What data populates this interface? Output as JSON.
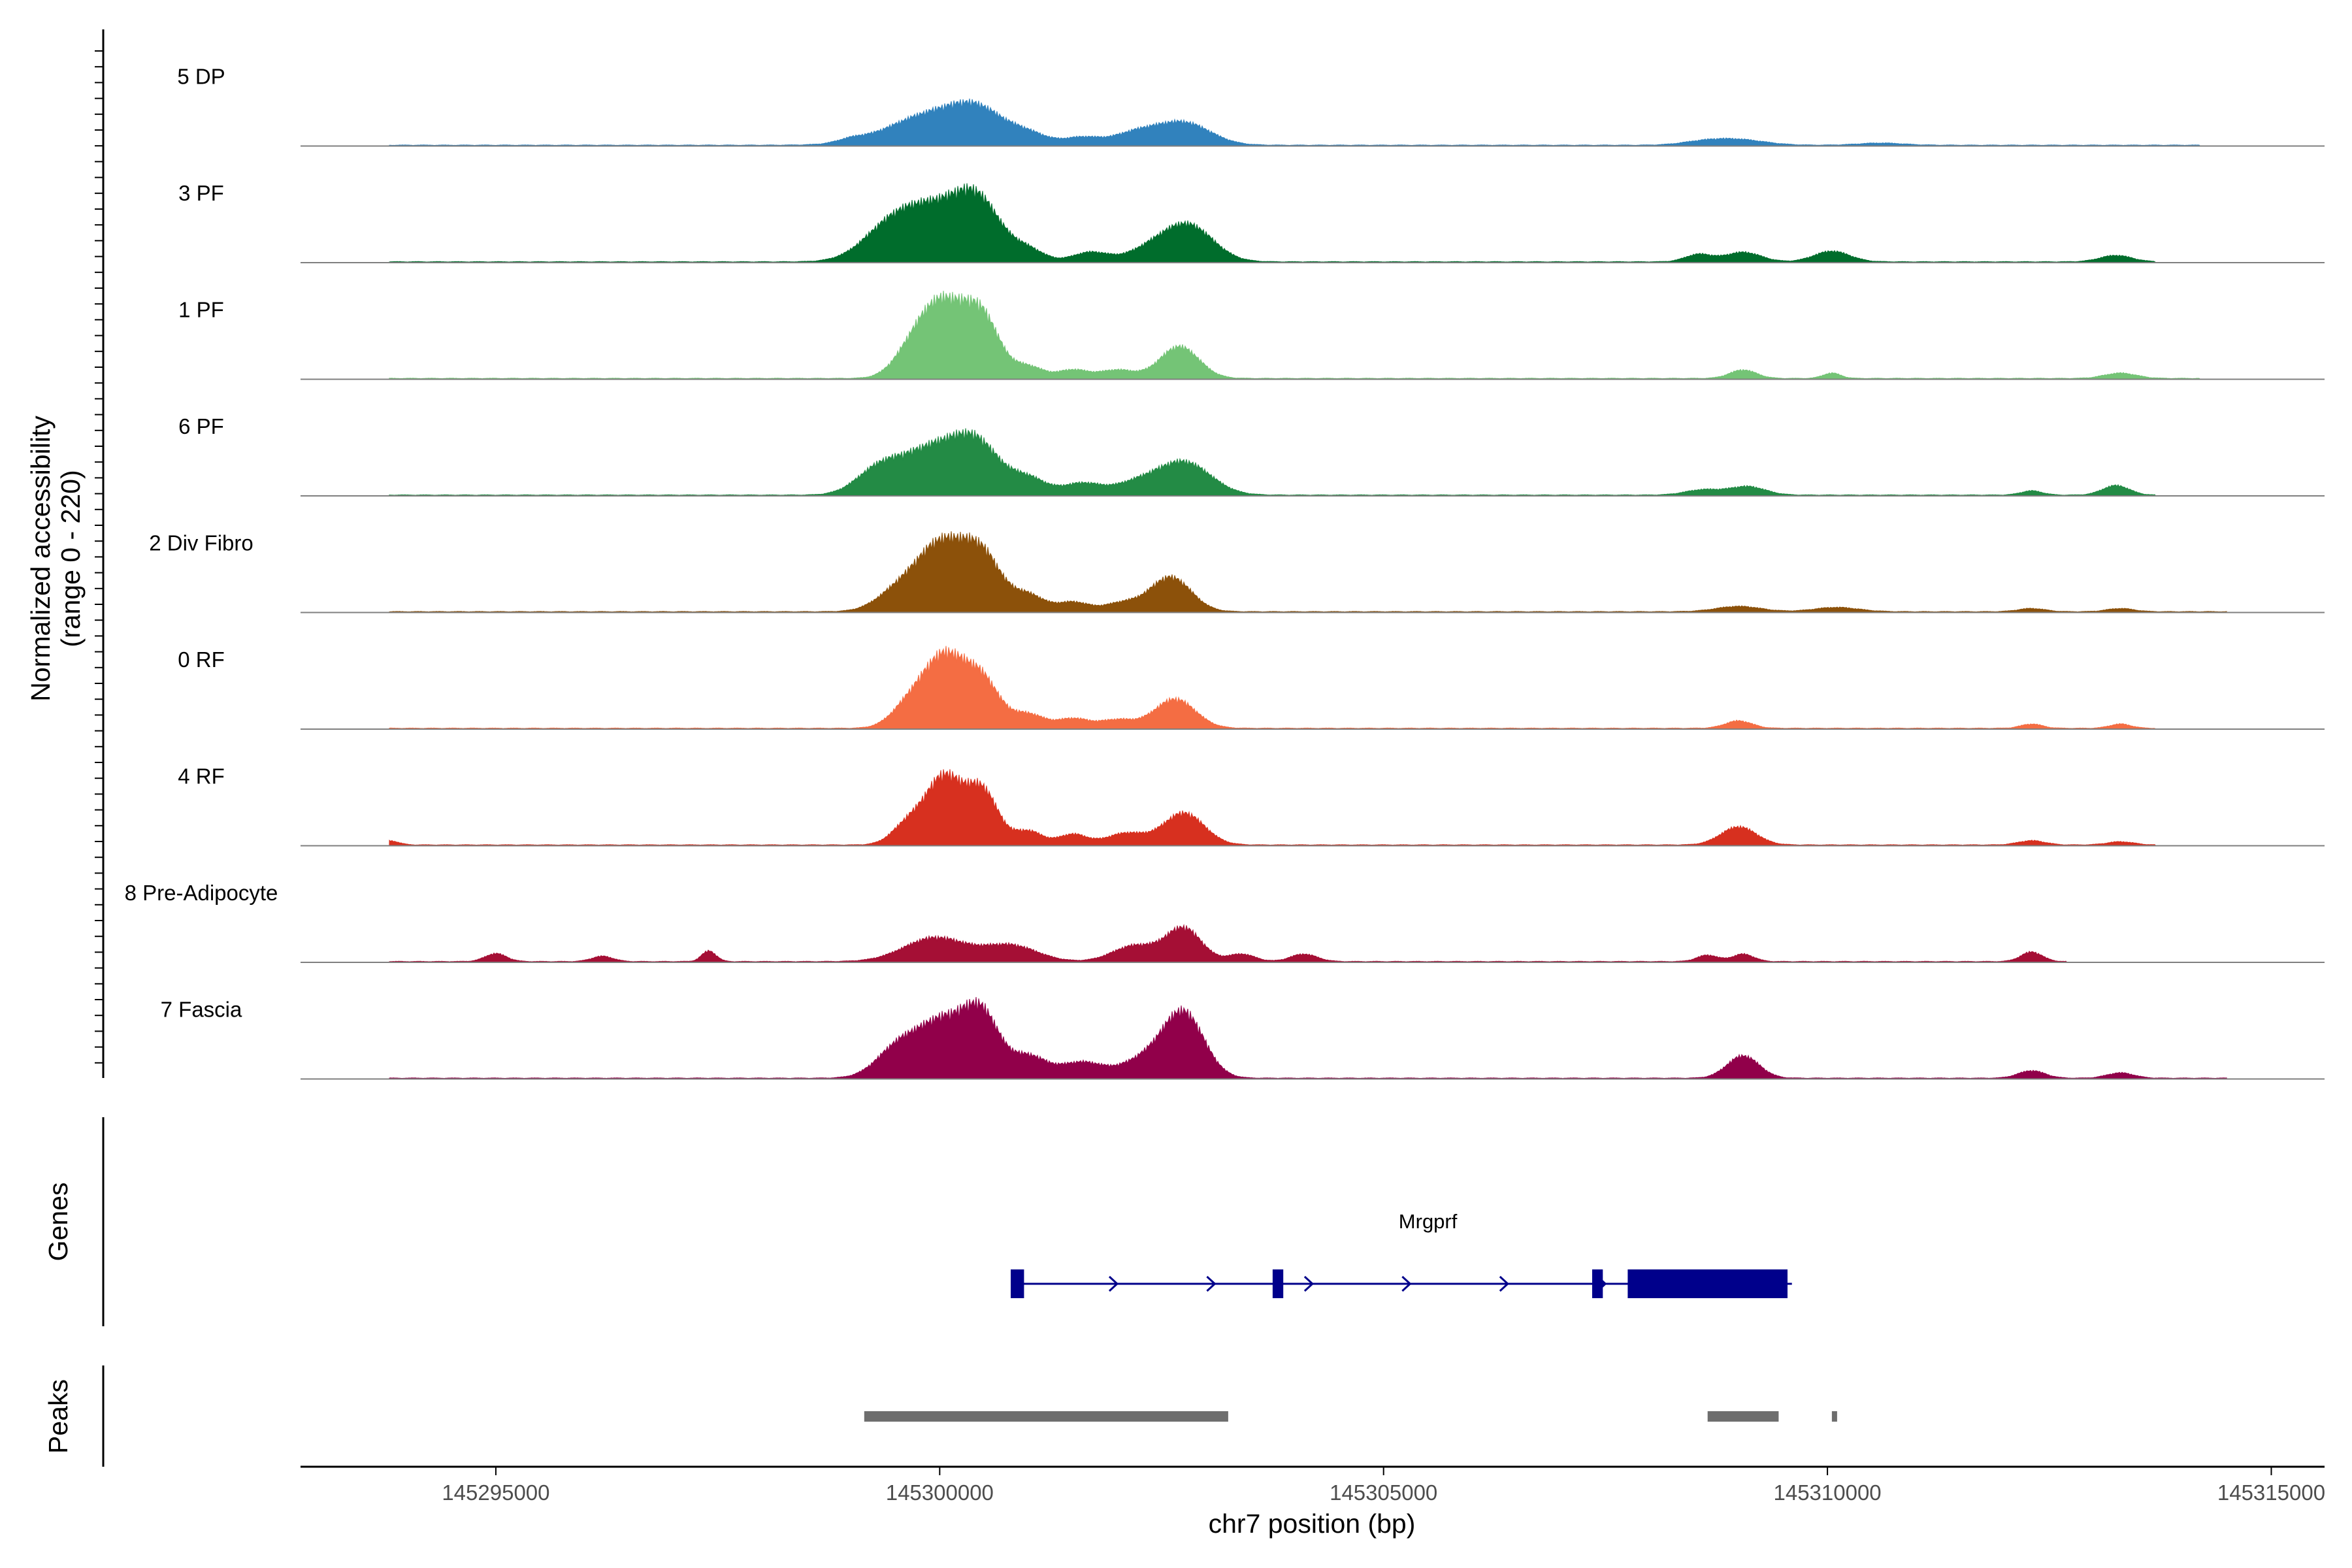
{
  "chart_data": {
    "type": "area",
    "title": "",
    "ylabel": "Normalized accessibility",
    "ylabel_range": "(range 0 - 220)",
    "ylim": [
      0,
      220
    ],
    "xlabel": "chr7 position (bp)",
    "xlim": [
      145292800,
      145315600
    ],
    "x_ticks": [
      145295000,
      145300000,
      145305000,
      145310000,
      145315000
    ],
    "x_tick_labels": [
      "145295000",
      "145300000",
      "145305000",
      "145310000",
      "145315000"
    ],
    "series": [
      {
        "name": "5 DP",
        "color": "#3182bd",
        "peaks": [
          [
            145299950,
            60,
            500
          ],
          [
            145300450,
            40,
            280
          ],
          [
            145301000,
            18,
            220
          ],
          [
            145301600,
            14,
            200
          ],
          [
            145302200,
            22,
            260
          ],
          [
            145302750,
            42,
            300
          ],
          [
            145299000,
            6,
            150
          ],
          [
            145308600,
            6,
            250
          ],
          [
            145309000,
            10,
            300
          ],
          [
            145310600,
            4,
            250
          ]
        ],
        "extent": [
          145293800,
          145314200
        ]
      },
      {
        "name": "3 PF",
        "color": "#006d2c",
        "peaks": [
          [
            145299950,
            100,
            420
          ],
          [
            145300450,
            80,
            250
          ],
          [
            145299400,
            40,
            300
          ],
          [
            145301000,
            20,
            180
          ],
          [
            145301700,
            18,
            200
          ],
          [
            145302350,
            20,
            250
          ],
          [
            145302800,
            68,
            280
          ],
          [
            145308550,
            14,
            150
          ],
          [
            145309050,
            18,
            200
          ],
          [
            145310050,
            20,
            200
          ],
          [
            145313250,
            12,
            180
          ]
        ],
        "extent": [
          145293800,
          145313700
        ]
      },
      {
        "name": "1 PF",
        "color": "#74c476",
        "peaks": [
          [
            145300020,
            140,
            260
          ],
          [
            145300480,
            105,
            200
          ],
          [
            145299650,
            30,
            200
          ],
          [
            145301000,
            22,
            170
          ],
          [
            145301500,
            16,
            170
          ],
          [
            145302000,
            16,
            200
          ],
          [
            145302700,
            60,
            220
          ],
          [
            145309050,
            16,
            150
          ],
          [
            145310050,
            10,
            100
          ],
          [
            145313300,
            10,
            180
          ]
        ],
        "extent": [
          145293800,
          145314200
        ]
      },
      {
        "name": "6 PF",
        "color": "#238b45",
        "peaks": [
          [
            145299950,
            90,
            380
          ],
          [
            145300450,
            70,
            250
          ],
          [
            145299300,
            40,
            250
          ],
          [
            145301000,
            30,
            200
          ],
          [
            145301600,
            22,
            220
          ],
          [
            145302200,
            20,
            250
          ],
          [
            145302750,
            62,
            300
          ],
          [
            145308600,
            10,
            200
          ],
          [
            145309100,
            16,
            200
          ],
          [
            145312300,
            8,
            120
          ],
          [
            145313250,
            18,
            150
          ]
        ],
        "extent": [
          145293800,
          145313700
        ]
      },
      {
        "name": "2 Div Fibro",
        "color": "#8c510a",
        "peaks": [
          [
            145300020,
            120,
            260
          ],
          [
            145300480,
            100,
            220
          ],
          [
            145299550,
            40,
            250
          ],
          [
            145301000,
            30,
            180
          ],
          [
            145301500,
            18,
            180
          ],
          [
            145302050,
            16,
            200
          ],
          [
            145302600,
            65,
            230
          ],
          [
            145309000,
            10,
            250
          ],
          [
            145310100,
            8,
            250
          ],
          [
            145312300,
            6,
            150
          ],
          [
            145313300,
            6,
            150
          ]
        ],
        "extent": [
          145293800,
          145314500
        ]
      },
      {
        "name": "0 RF",
        "color": "#f46d43",
        "peaks": [
          [
            145300050,
            130,
            230
          ],
          [
            145300480,
            85,
            200
          ],
          [
            145299650,
            40,
            200
          ],
          [
            145301000,
            26,
            180
          ],
          [
            145301500,
            18,
            180
          ],
          [
            145302000,
            16,
            200
          ],
          [
            145302650,
            55,
            230
          ],
          [
            145309000,
            14,
            150
          ],
          [
            145312300,
            8,
            120
          ],
          [
            145313300,
            8,
            120
          ]
        ],
        "extent": [
          145293800,
          145313700
        ]
      },
      {
        "name": "4 RF",
        "color": "#d7301f",
        "peaks": [
          [
            145300050,
            125,
            200
          ],
          [
            145300480,
            100,
            180
          ],
          [
            145299650,
            40,
            180
          ],
          [
            145301000,
            26,
            160
          ],
          [
            145301500,
            20,
            160
          ],
          [
            145302100,
            22,
            220
          ],
          [
            145302750,
            60,
            230
          ],
          [
            145309000,
            34,
            200
          ],
          [
            145293800,
            8,
            100
          ],
          [
            145312300,
            8,
            150
          ],
          [
            145313300,
            6,
            150
          ]
        ],
        "extent": [
          145293800,
          145313700
        ]
      },
      {
        "name": "8 Pre-Adipocyte",
        "color": "#a50f35",
        "peaks": [
          [
            145295000,
            15,
            120
          ],
          [
            145296200,
            10,
            120
          ],
          [
            145297400,
            20,
            80
          ],
          [
            145299950,
            45,
            350
          ],
          [
            145300800,
            30,
            300
          ],
          [
            145302200,
            30,
            250
          ],
          [
            145302750,
            62,
            200
          ],
          [
            145303400,
            14,
            150
          ],
          [
            145304100,
            14,
            150
          ],
          [
            145308650,
            12,
            120
          ],
          [
            145309050,
            14,
            120
          ],
          [
            145312300,
            18,
            120
          ]
        ],
        "extent": [
          145293800,
          145312700
        ]
      },
      {
        "name": "7 Fascia",
        "color": "#91004a",
        "peaks": [
          [
            145300050,
            100,
            260
          ],
          [
            145300480,
            110,
            200
          ],
          [
            145299550,
            60,
            250
          ],
          [
            145301000,
            40,
            200
          ],
          [
            145301600,
            30,
            250
          ],
          [
            145302300,
            34,
            250
          ],
          [
            145302750,
            120,
            230
          ],
          [
            145309050,
            42,
            180
          ],
          [
            145312300,
            14,
            150
          ],
          [
            145313300,
            10,
            150
          ]
        ],
        "extent": [
          145293800,
          145314500
        ]
      }
    ],
    "genes": {
      "track_label": "Genes",
      "name": "Mrgprf",
      "color": "#00008b",
      "strand": "+",
      "span": [
        145300800,
        145309600
      ],
      "exons": [
        [
          145300800,
          145300950
        ],
        [
          145303750,
          145303870
        ],
        [
          145307350,
          145307470
        ],
        [
          145307750,
          145309550
        ]
      ]
    },
    "peaks_track": {
      "track_label": "Peaks",
      "color": "#6e6e6e",
      "regions": [
        [
          145299150,
          145303250
        ],
        [
          145308650,
          145309450
        ],
        [
          145310050,
          145310100
        ]
      ]
    }
  }
}
